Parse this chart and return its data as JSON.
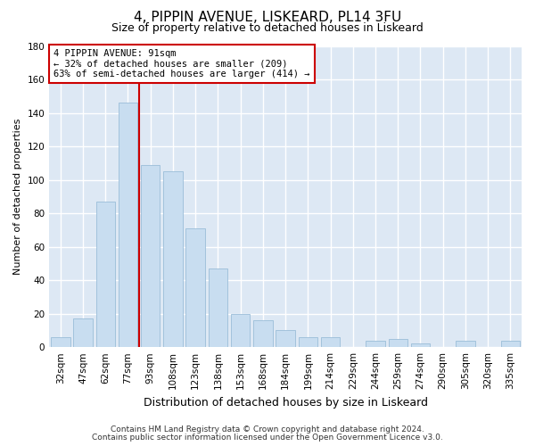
{
  "title": "4, PIPPIN AVENUE, LISKEARD, PL14 3FU",
  "subtitle": "Size of property relative to detached houses in Liskeard",
  "xlabel": "Distribution of detached houses by size in Liskeard",
  "ylabel": "Number of detached properties",
  "bar_labels": [
    "32sqm",
    "47sqm",
    "62sqm",
    "77sqm",
    "93sqm",
    "108sqm",
    "123sqm",
    "138sqm",
    "153sqm",
    "168sqm",
    "184sqm",
    "199sqm",
    "214sqm",
    "229sqm",
    "244sqm",
    "259sqm",
    "274sqm",
    "290sqm",
    "305sqm",
    "320sqm",
    "335sqm"
  ],
  "bar_values": [
    6,
    17,
    87,
    146,
    109,
    105,
    71,
    47,
    20,
    16,
    10,
    6,
    6,
    0,
    4,
    5,
    2,
    0,
    4,
    0,
    4
  ],
  "bar_color": "#c8ddf0",
  "bar_edge_color": "#9bbdd8",
  "vline_color": "#cc0000",
  "ylim": [
    0,
    180
  ],
  "yticks": [
    0,
    20,
    40,
    60,
    80,
    100,
    120,
    140,
    160,
    180
  ],
  "annotation_line1": "4 PIPPIN AVENUE: 91sqm",
  "annotation_line2": "← 32% of detached houses are smaller (209)",
  "annotation_line3": "63% of semi-detached houses are larger (414) →",
  "annotation_box_color": "#ffffff",
  "annotation_box_edge": "#cc0000",
  "footer1": "Contains HM Land Registry data © Crown copyright and database right 2024.",
  "footer2": "Contains public sector information licensed under the Open Government Licence v3.0.",
  "fig_bg_color": "#ffffff",
  "plot_bg_color": "#dde8f4",
  "grid_color": "#ffffff",
  "title_fontsize": 11,
  "subtitle_fontsize": 9,
  "xlabel_fontsize": 9,
  "ylabel_fontsize": 8,
  "tick_fontsize": 7.5,
  "footer_fontsize": 6.5
}
